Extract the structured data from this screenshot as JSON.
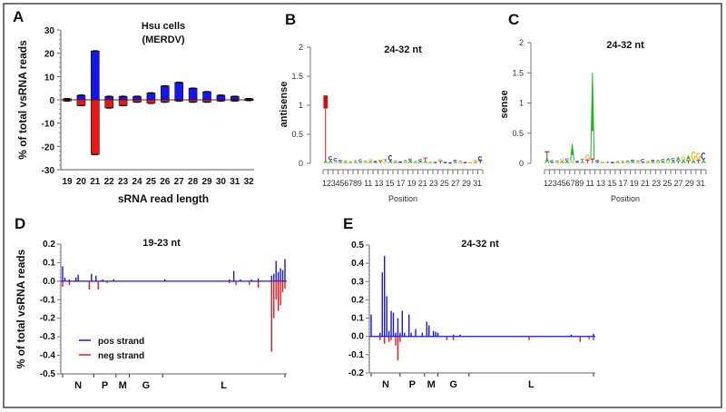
{
  "chart_data": [
    {
      "panel": "A",
      "type": "bar",
      "title": "Hsu cells",
      "subtitle": "(MERDV)",
      "xlabel": "sRNA read length",
      "ylabel": "% of total vsRNA reads",
      "ylim": [
        -30,
        30
      ],
      "yticks": [
        "30",
        "20",
        "10",
        "0",
        "-10",
        "-20",
        "-30"
      ],
      "categories": [
        "19",
        "20",
        "21",
        "22",
        "23",
        "24",
        "25",
        "26",
        "27",
        "28",
        "29",
        "30",
        "31",
        "32"
      ],
      "series": [
        {
          "name": "pos strand",
          "color": "#1515f0",
          "values": [
            0.5,
            2,
            21,
            1.5,
            1.5,
            1.5,
            3,
            6,
            7.5,
            5,
            3.5,
            2,
            1.5,
            0.5
          ]
        },
        {
          "name": "neg strand",
          "color": "#f01515",
          "values": [
            -0.5,
            -2.5,
            -23.5,
            -3.5,
            -2.5,
            -1,
            -1.5,
            -1,
            -0.5,
            -1,
            -1,
            -0.5,
            -0.5,
            -0.3
          ]
        }
      ]
    },
    {
      "panel": "B",
      "type": "sequence-logo",
      "title": "24-32 nt",
      "xlabel": "Position",
      "ylabel": "antisense",
      "ylim": [
        0,
        2
      ],
      "yticks": [
        "0",
        "0.5",
        "1",
        "1.5",
        "2"
      ],
      "xtick_labels": "123456789  11 13 15 17 19 21 23 25 27 29 31",
      "positions": [
        [
          [
            "A",
            0.05
          ],
          [
            "T",
            1.12
          ]
        ],
        [
          [
            "A",
            0.06
          ],
          [
            "C",
            0.06
          ]
        ],
        [
          [
            "G",
            0.04
          ],
          [
            "C",
            0.05
          ]
        ],
        [
          [
            "A",
            0.03
          ],
          [
            "C",
            0.03
          ]
        ],
        [
          [
            "A",
            0.03
          ],
          [
            "G",
            0.02
          ]
        ],
        [
          [
            "G",
            0.02
          ],
          [
            "A",
            0.02
          ]
        ],
        [
          [
            "A",
            0.03
          ],
          [
            "T",
            0.02
          ]
        ],
        [
          [
            "A",
            0.03
          ],
          [
            "C",
            0.04
          ]
        ],
        [
          [
            "G",
            0.03
          ],
          [
            "A",
            0.02
          ]
        ],
        [
          [
            "A",
            0.04
          ],
          [
            "G",
            0.03
          ]
        ],
        [
          [
            "A",
            0.02
          ],
          [
            "C",
            0.02
          ]
        ],
        [
          [
            "T",
            0.04
          ],
          [
            "G",
            0.02
          ]
        ],
        [
          [
            "G",
            0.04
          ],
          [
            "T",
            0.03
          ]
        ],
        [
          [
            "A",
            0.05
          ],
          [
            "C",
            0.09
          ]
        ],
        [
          [
            "A",
            0.03
          ],
          [
            "G",
            0.02
          ]
        ],
        [
          [
            "A",
            0.02
          ],
          [
            "C",
            0.01
          ]
        ],
        [
          [
            "G",
            0.03
          ],
          [
            "A",
            0.03
          ]
        ],
        [
          [
            "A",
            0.05
          ],
          [
            "C",
            0.03
          ]
        ],
        [
          [
            "G",
            0.02
          ],
          [
            "A",
            0.02
          ]
        ],
        [
          [
            "A",
            0.04
          ],
          [
            "C",
            0.03
          ]
        ],
        [
          [
            "A",
            0.04
          ],
          [
            "T",
            0.06
          ]
        ],
        [
          [
            "G",
            0.02
          ],
          [
            "A",
            0.01
          ]
        ],
        [
          [
            "A",
            0.01
          ],
          [
            "C",
            0.01
          ]
        ],
        [
          [
            "T",
            0.04
          ],
          [
            "G",
            0.04
          ]
        ],
        [
          [
            "A",
            0.01
          ],
          [
            "C",
            0.01
          ]
        ],
        [
          [
            "C",
            0.01
          ],
          [
            "A",
            0.01
          ]
        ],
        [
          [
            "A",
            0.03
          ],
          [
            "C",
            0.03
          ]
        ],
        [
          [
            "G",
            0.03
          ],
          [
            "A",
            0.02
          ]
        ],
        [
          [
            "A",
            0.01
          ],
          [
            "C",
            0.01
          ]
        ],
        [
          [
            "A",
            0.01
          ],
          [
            "G",
            0.01
          ]
        ],
        [
          [
            "A",
            0.03
          ],
          [
            "G",
            0.03
          ]
        ],
        [
          [
            "T",
            0.05
          ],
          [
            "C",
            0.07
          ]
        ]
      ]
    },
    {
      "panel": "C",
      "type": "sequence-logo",
      "title": "24-32 nt",
      "xlabel": "Position",
      "ylabel": "sense",
      "ylim": [
        0,
        2
      ],
      "yticks": [
        "0",
        "0.5",
        "1",
        "1.5",
        "2"
      ],
      "xtick_labels": "123456789  11 13 15 17 19 21 23 25 27 29 31",
      "positions": [
        [
          [
            "A",
            0.1
          ],
          [
            "T",
            0.1
          ]
        ],
        [
          [
            "A",
            0.02
          ],
          [
            "C",
            0.03
          ]
        ],
        [
          [
            "G",
            0.03
          ],
          [
            "A",
            0.02
          ]
        ],
        [
          [
            "A",
            0.04
          ],
          [
            "G",
            0.04
          ]
        ],
        [
          [
            "A",
            0.04
          ],
          [
            "C",
            0.04
          ]
        ],
        [
          [
            "G",
            0.05
          ],
          [
            "A",
            0.27
          ]
        ],
        [
          [
            "A",
            0.02
          ],
          [
            "C",
            0.02
          ]
        ],
        [
          [
            "A",
            0.03
          ],
          [
            "T",
            0.04
          ]
        ],
        [
          [
            "T",
            0.06
          ],
          [
            "G",
            0.08
          ]
        ],
        [
          [
            "T",
            0.08
          ],
          [
            "A",
            1.42
          ]
        ],
        [
          [
            "A",
            0.03
          ],
          [
            "C",
            0.02
          ]
        ],
        [
          [
            "A",
            0.01
          ],
          [
            "G",
            0.01
          ]
        ],
        [
          [
            "A",
            0.01
          ],
          [
            "T",
            0.02
          ]
        ],
        [
          [
            "A",
            0.01
          ],
          [
            "C",
            0.01
          ]
        ],
        [
          [
            "G",
            0.02
          ],
          [
            "A",
            0.02
          ]
        ],
        [
          [
            "A",
            0.02
          ],
          [
            "T",
            0.02
          ]
        ],
        [
          [
            "G",
            0.02
          ],
          [
            "A",
            0.03
          ]
        ],
        [
          [
            "A",
            0.03
          ],
          [
            "C",
            0.03
          ]
        ],
        [
          [
            "G",
            0.03
          ],
          [
            "A",
            0.02
          ]
        ],
        [
          [
            "A",
            0.02
          ],
          [
            "C",
            0.05
          ]
        ],
        [
          [
            "A",
            0.02
          ],
          [
            "G",
            0.02
          ]
        ],
        [
          [
            "A",
            0.03
          ],
          [
            "C",
            0.03
          ]
        ],
        [
          [
            "G",
            0.03
          ],
          [
            "A",
            0.03
          ]
        ],
        [
          [
            "A",
            0.03
          ],
          [
            "C",
            0.04
          ]
        ],
        [
          [
            "G",
            0.04
          ],
          [
            "A",
            0.05
          ]
        ],
        [
          [
            "A",
            0.05
          ],
          [
            "C",
            0.04
          ]
        ],
        [
          [
            "T",
            0.04
          ],
          [
            "A",
            0.07
          ]
        ],
        [
          [
            "A",
            0.06
          ],
          [
            "G",
            0.05
          ]
        ],
        [
          [
            "T",
            0.05
          ],
          [
            "A",
            0.08
          ]
        ],
        [
          [
            "A",
            0.05
          ],
          [
            "G",
            0.15
          ]
        ],
        [
          [
            "T",
            0.06
          ],
          [
            "G",
            0.12
          ]
        ],
        [
          [
            "A",
            0.06
          ],
          [
            "C",
            0.12
          ]
        ]
      ]
    },
    {
      "panel": "D",
      "type": "line",
      "title": "19-23 nt",
      "ylabel": "% of total vsRNA reads",
      "ylim": [
        -0.5,
        0.2
      ],
      "yticks": [
        "0.2",
        "0.1",
        "0.0",
        "-0.1",
        "-0.2",
        "-0.3",
        "-0.4",
        "-0.5"
      ],
      "genes": [
        {
          "name": "N",
          "start": 0,
          "end": 14
        },
        {
          "name": "P",
          "start": 14,
          "end": 24
        },
        {
          "name": "M",
          "start": 24,
          "end": 30
        },
        {
          "name": "G",
          "start": 30,
          "end": 45
        },
        {
          "name": "L",
          "start": 45,
          "end": 100
        }
      ],
      "legend": [
        {
          "name": "pos strand",
          "color": "#1515f0"
        },
        {
          "name": "neg strand",
          "color": "#f01515"
        }
      ],
      "legend_position": "bottom-left",
      "pos": [
        [
          0,
          0.08
        ],
        [
          1,
          0.02
        ],
        [
          3,
          0.01
        ],
        [
          6,
          0.02
        ],
        [
          7,
          0.035
        ],
        [
          13,
          0.04
        ],
        [
          15,
          0.03
        ],
        [
          18,
          0.01
        ],
        [
          23,
          0.01
        ],
        [
          46,
          0.01
        ],
        [
          75,
          0.01
        ],
        [
          77,
          0.055
        ],
        [
          80,
          0.01
        ],
        [
          85,
          0.01
        ],
        [
          88,
          0.015
        ],
        [
          94,
          0.03
        ],
        [
          95,
          0.04
        ],
        [
          96,
          0.11
        ],
        [
          97,
          0.05
        ],
        [
          98,
          0.07
        ],
        [
          99,
          0.06
        ],
        [
          100,
          0.12
        ]
      ],
      "neg": [
        [
          0,
          -0.03
        ],
        [
          3,
          -0.02
        ],
        [
          12,
          -0.045
        ],
        [
          16,
          -0.045
        ],
        [
          20,
          -0.01
        ],
        [
          75,
          -0.01
        ],
        [
          78,
          -0.02
        ],
        [
          84,
          -0.02
        ],
        [
          88,
          -0.035
        ],
        [
          94,
          -0.38
        ],
        [
          95,
          -0.2
        ],
        [
          96,
          -0.1
        ],
        [
          97,
          -0.16
        ],
        [
          98,
          -0.13
        ],
        [
          99,
          -0.06
        ],
        [
          100,
          -0.04
        ]
      ]
    },
    {
      "panel": "E",
      "type": "line",
      "title": "24-32 nt",
      "ylim": [
        -0.2,
        0.5
      ],
      "yticks": [
        "0.5",
        "0.4",
        "0.3",
        "0.2",
        "0.1",
        "0.0",
        "-0.1",
        "-0.2"
      ],
      "genes": [
        {
          "name": "N",
          "start": 0,
          "end": 13
        },
        {
          "name": "P",
          "start": 13,
          "end": 24
        },
        {
          "name": "M",
          "start": 24,
          "end": 30
        },
        {
          "name": "G",
          "start": 30,
          "end": 44
        },
        {
          "name": "L",
          "start": 44,
          "end": 100
        }
      ],
      "pos": [
        [
          0,
          0.12
        ],
        [
          4,
          0.02
        ],
        [
          5,
          0.35
        ],
        [
          6,
          0.44
        ],
        [
          7,
          0.22
        ],
        [
          8,
          0.03
        ],
        [
          9,
          0.14
        ],
        [
          10,
          0.13
        ],
        [
          11,
          0.02
        ],
        [
          12,
          0.1
        ],
        [
          13,
          0.02
        ],
        [
          14,
          0.14
        ],
        [
          15,
          0.02
        ],
        [
          17,
          0.12
        ],
        [
          18,
          0.02
        ],
        [
          20,
          0.04
        ],
        [
          23,
          0.02
        ],
        [
          25,
          0.08
        ],
        [
          26,
          0.06
        ],
        [
          28,
          0.03
        ],
        [
          29,
          0.025
        ],
        [
          30,
          0.02
        ],
        [
          37,
          0.01
        ],
        [
          40,
          0.01
        ],
        [
          90,
          0.01
        ],
        [
          100,
          0.015
        ]
      ],
      "neg": [
        [
          4,
          -0.02
        ],
        [
          6,
          -0.04
        ],
        [
          8,
          -0.03
        ],
        [
          9,
          -0.02
        ],
        [
          11,
          -0.05
        ],
        [
          12,
          -0.13
        ],
        [
          13,
          -0.03
        ],
        [
          34,
          -0.02
        ],
        [
          37,
          -0.02
        ],
        [
          71,
          -0.02
        ],
        [
          94,
          -0.03
        ],
        [
          98,
          -0.015
        ],
        [
          100,
          -0.02
        ]
      ]
    }
  ],
  "panel_labels": [
    "A",
    "B",
    "C",
    "D",
    "E"
  ],
  "logo_colors": {
    "A": "#10c010",
    "C": "#1515c0",
    "G": "#f5a800",
    "T": "#d01010"
  }
}
